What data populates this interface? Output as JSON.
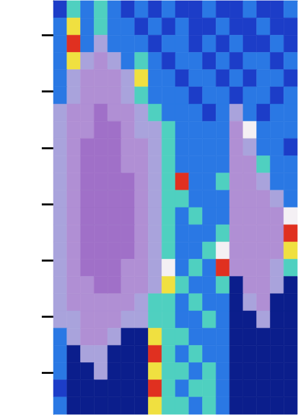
{
  "chart_data": {
    "type": "heatmap",
    "x": [
      0.5,
      1.5,
      2.5,
      3.5,
      4.5,
      5.5,
      6.5,
      7.5,
      8.5,
      9.5,
      10.5,
      11.5,
      12.5,
      13.5,
      14.5,
      15.5,
      16.5,
      17.5
    ],
    "y": [
      1.5,
      4.5,
      7.5,
      10.5,
      13.5,
      16.5,
      19.5,
      22.5,
      25.5,
      28.5,
      31.5,
      34.5,
      37.5,
      40.5,
      43.5,
      46.5,
      49.5,
      52.5,
      55.5,
      58.5,
      61.5,
      64.5,
      67.5,
      70.5
    ],
    "cells": [
      [
        1,
        3,
        2,
        3,
        2,
        1,
        2,
        1,
        2,
        1,
        1,
        2,
        1,
        1,
        2,
        1,
        1,
        2
      ],
      [
        2,
        4,
        2,
        3,
        2,
        2,
        1,
        2,
        1,
        2,
        1,
        1,
        2,
        1,
        1,
        2,
        1,
        1
      ],
      [
        2,
        5,
        2,
        7,
        2,
        2,
        2,
        1,
        2,
        2,
        1,
        2,
        1,
        2,
        1,
        1,
        2,
        1
      ],
      [
        2,
        4,
        7,
        8,
        7,
        2,
        3,
        2,
        1,
        2,
        2,
        1,
        2,
        1,
        2,
        2,
        1,
        2
      ],
      [
        2,
        7,
        8,
        8,
        8,
        7,
        4,
        2,
        2,
        1,
        2,
        2,
        1,
        2,
        1,
        2,
        2,
        1
      ],
      [
        2,
        7,
        8,
        8,
        8,
        7,
        3,
        2,
        2,
        2,
        1,
        2,
        2,
        1,
        2,
        2,
        1,
        2
      ],
      [
        7,
        8,
        8,
        9,
        8,
        8,
        7,
        3,
        2,
        2,
        2,
        1,
        2,
        7,
        2,
        1,
        2,
        2
      ],
      [
        7,
        8,
        8,
        9,
        9,
        8,
        7,
        7,
        3,
        2,
        2,
        2,
        2,
        8,
        6,
        2,
        2,
        2
      ],
      [
        7,
        8,
        9,
        9,
        9,
        8,
        8,
        7,
        3,
        2,
        2,
        2,
        2,
        8,
        7,
        2,
        2,
        1
      ],
      [
        7,
        8,
        9,
        9,
        9,
        8,
        8,
        7,
        3,
        2,
        2,
        2,
        2,
        8,
        8,
        3,
        2,
        2
      ],
      [
        7,
        8,
        9,
        9,
        9,
        9,
        8,
        7,
        3,
        5,
        2,
        2,
        3,
        8,
        8,
        7,
        2,
        2
      ],
      [
        7,
        8,
        9,
        9,
        9,
        9,
        8,
        7,
        3,
        3,
        2,
        2,
        2,
        8,
        8,
        8,
        7,
        2
      ],
      [
        7,
        8,
        9,
        9,
        9,
        9,
        8,
        7,
        3,
        2,
        3,
        2,
        2,
        8,
        8,
        8,
        8,
        6
      ],
      [
        7,
        8,
        9,
        9,
        9,
        9,
        8,
        7,
        3,
        2,
        2,
        2,
        3,
        8,
        8,
        8,
        8,
        5
      ],
      [
        7,
        8,
        9,
        9,
        9,
        9,
        8,
        7,
        3,
        2,
        2,
        3,
        6,
        8,
        8,
        8,
        8,
        4
      ],
      [
        7,
        8,
        9,
        9,
        9,
        8,
        8,
        7,
        6,
        2,
        3,
        2,
        5,
        8,
        8,
        8,
        7,
        3
      ],
      [
        7,
        8,
        8,
        9,
        9,
        8,
        8,
        7,
        4,
        3,
        2,
        2,
        3,
        0,
        8,
        8,
        7,
        0
      ],
      [
        7,
        8,
        8,
        8,
        8,
        8,
        7,
        3,
        3,
        2,
        3,
        2,
        2,
        0,
        7,
        8,
        0,
        0
      ],
      [
        7,
        7,
        8,
        8,
        8,
        7,
        7,
        3,
        3,
        2,
        2,
        3,
        2,
        0,
        0,
        7,
        0,
        0
      ],
      [
        2,
        7,
        8,
        8,
        7,
        0,
        0,
        4,
        3,
        3,
        2,
        2,
        2,
        0,
        0,
        0,
        0,
        0
      ],
      [
        2,
        0,
        7,
        7,
        0,
        0,
        0,
        5,
        3,
        2,
        3,
        2,
        2,
        0,
        0,
        0,
        0,
        0
      ],
      [
        2,
        0,
        0,
        7,
        0,
        0,
        0,
        4,
        3,
        3,
        2,
        3,
        2,
        0,
        0,
        0,
        0,
        0
      ],
      [
        1,
        0,
        0,
        0,
        0,
        0,
        0,
        5,
        3,
        2,
        3,
        3,
        2,
        0,
        0,
        0,
        0,
        0
      ],
      [
        2,
        0,
        0,
        0,
        0,
        0,
        0,
        4,
        3,
        3,
        2,
        3,
        2,
        0,
        0,
        0,
        0,
        0
      ]
    ],
    "zlim": [
      0,
      9
    ],
    "colors": [
      "#0b1e8c",
      "#1c3dc8",
      "#2a78e4",
      "#4fd0c0",
      "#f0e040",
      "#e03020",
      "#f4f0f4",
      "#a9a3dc",
      "#b08fd4",
      "#a070c8"
    ],
    "xlim": [
      0,
      18
    ],
    "ylim": [
      0,
      72
    ],
    "yticks": [
      6,
      15.8,
      25.6,
      35.4,
      45.2,
      55,
      64.8
    ],
    "tick_labels": false,
    "grid": false
  }
}
